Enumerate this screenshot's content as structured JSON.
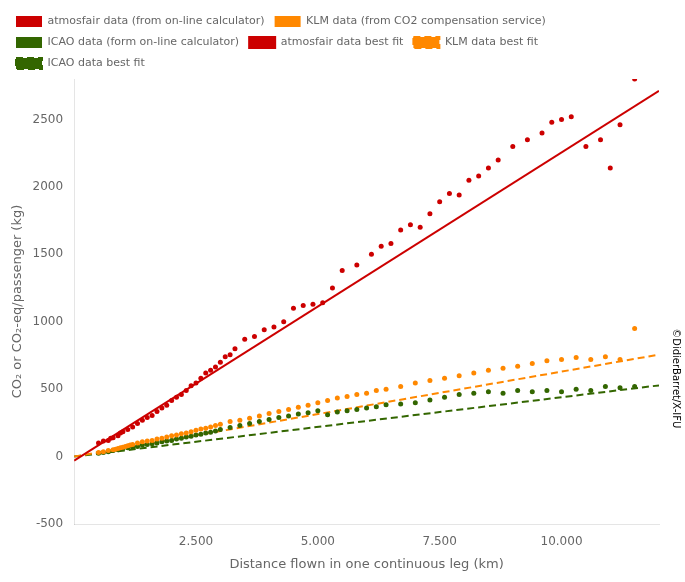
{
  "chart_data": {
    "type": "scatter",
    "xlabel": "Distance flown in one continuous leg (km)",
    "ylabel": "CO₂ or CO₂-eq/passenger (kg)",
    "annotation": "©DidierBarret/X-IFU",
    "xlim": [
      0,
      12000
    ],
    "xticks": [
      {
        "value": 2500,
        "label": "2.500"
      },
      {
        "value": 5000,
        "label": "5.000"
      },
      {
        "value": 7500,
        "label": "7.500"
      },
      {
        "value": 10000,
        "label": "10.000"
      }
    ],
    "ylim": [
      -500,
      2800
    ],
    "yticks": [
      -500,
      0,
      500,
      1000,
      1500,
      2000,
      2500
    ],
    "grid": false,
    "legend": "upper left",
    "series": [
      {
        "name": "atmosfair data (from on-line calculator)",
        "type": "scatter",
        "marker": "circle",
        "color": "#cc0000",
        "x": [
          500,
          600,
          700,
          750,
          800,
          900,
          950,
          1000,
          1100,
          1200,
          1300,
          1400,
          1500,
          1600,
          1700,
          1800,
          1900,
          2000,
          2100,
          2200,
          2300,
          2400,
          2500,
          2600,
          2700,
          2800,
          2900,
          3000,
          3100,
          3200,
          3300,
          3500,
          3700,
          3900,
          4100,
          4300,
          4500,
          4700,
          4900,
          5100,
          5300,
          5500,
          5800,
          6100,
          6300,
          6500,
          6700,
          6900,
          7100,
          7300,
          7500,
          7700,
          7900,
          8100,
          8300,
          8500,
          8700,
          9000,
          9300,
          9600,
          9800,
          10000,
          10200,
          10500,
          10800,
          11000,
          11200,
          11500
        ],
        "values": [
          100,
          115,
          120,
          135,
          140,
          155,
          175,
          185,
          200,
          220,
          245,
          270,
          290,
          305,
          335,
          360,
          380,
          415,
          440,
          460,
          490,
          525,
          545,
          580,
          620,
          640,
          665,
          700,
          740,
          755,
          800,
          870,
          890,
          940,
          960,
          1000,
          1100,
          1120,
          1130,
          1140,
          1250,
          1380,
          1420,
          1500,
          1560,
          1580,
          1680,
          1720,
          1700,
          1800,
          1890,
          1950,
          1940,
          2050,
          2080,
          2140,
          2200,
          2300,
          2350,
          2400,
          2480,
          2500,
          2520,
          2300,
          2350,
          2140,
          2460,
          2800
        ]
      },
      {
        "name": "atmosfair data best fit",
        "type": "line",
        "line_style": "solid",
        "color": "#cc0000",
        "x": [
          0,
          12000
        ],
        "values": [
          -30,
          2712
        ]
      },
      {
        "name": "KLM data (from CO2 compensation service)",
        "type": "scatter",
        "marker": "circle",
        "color": "#ff8800",
        "x": [
          500,
          600,
          700,
          800,
          850,
          900,
          950,
          1000,
          1050,
          1100,
          1150,
          1200,
          1300,
          1400,
          1500,
          1600,
          1700,
          1800,
          1900,
          2000,
          2100,
          2200,
          2300,
          2400,
          2500,
          2600,
          2700,
          2800,
          2900,
          3000,
          3200,
          3400,
          3600,
          3800,
          4000,
          4200,
          4400,
          4600,
          4800,
          5000,
          5200,
          5400,
          5600,
          5800,
          6000,
          6200,
          6400,
          6700,
          7000,
          7300,
          7600,
          7900,
          8200,
          8500,
          8800,
          9100,
          9400,
          9700,
          10000,
          10300,
          10600,
          10900,
          11200,
          11500
        ],
        "values": [
          30,
          35,
          45,
          50,
          55,
          60,
          65,
          70,
          75,
          80,
          85,
          90,
          100,
          110,
          115,
          120,
          130,
          135,
          145,
          155,
          160,
          170,
          175,
          185,
          195,
          205,
          210,
          220,
          230,
          240,
          260,
          270,
          285,
          300,
          320,
          335,
          350,
          365,
          380,
          400,
          415,
          435,
          445,
          460,
          470,
          490,
          500,
          520,
          545,
          565,
          580,
          600,
          620,
          640,
          655,
          670,
          690,
          710,
          720,
          735,
          720,
          740,
          720,
          950
        ]
      },
      {
        "name": "KLM data best fit",
        "type": "line",
        "line_style": "dashed",
        "color": "#ff8800",
        "x": [
          0,
          12000
        ],
        "values": [
          0,
          756
        ]
      },
      {
        "name": "ICAO data (form on-line calculator)",
        "type": "scatter",
        "marker": "circle",
        "color": "#336600",
        "x": [
          500,
          600,
          700,
          800,
          900,
          1000,
          1100,
          1200,
          1300,
          1400,
          1500,
          1600,
          1700,
          1800,
          1900,
          2000,
          2100,
          2200,
          2300,
          2400,
          2500,
          2600,
          2700,
          2800,
          2900,
          3000,
          3200,
          3400,
          3600,
          3800,
          4000,
          4200,
          4400,
          4600,
          4800,
          5000,
          5200,
          5400,
          5600,
          5800,
          6000,
          6200,
          6400,
          6700,
          7000,
          7300,
          7600,
          7900,
          8200,
          8500,
          8800,
          9100,
          9400,
          9700,
          10000,
          10300,
          10600,
          10900,
          11200,
          11500
        ],
        "values": [
          25,
          30,
          35,
          45,
          50,
          60,
          65,
          70,
          75,
          85,
          90,
          95,
          100,
          110,
          115,
          120,
          130,
          135,
          145,
          150,
          160,
          165,
          175,
          180,
          190,
          200,
          215,
          230,
          245,
          260,
          275,
          290,
          300,
          315,
          325,
          340,
          310,
          330,
          340,
          350,
          360,
          370,
          385,
          390,
          400,
          420,
          440,
          460,
          470,
          480,
          470,
          490,
          480,
          490,
          480,
          500,
          490,
          520,
          510,
          520
        ]
      },
      {
        "name": "ICAO data best fit",
        "type": "line",
        "line_style": "dashed",
        "color": "#336600",
        "x": [
          0,
          12000
        ],
        "values": [
          0,
          528
        ]
      }
    ]
  }
}
